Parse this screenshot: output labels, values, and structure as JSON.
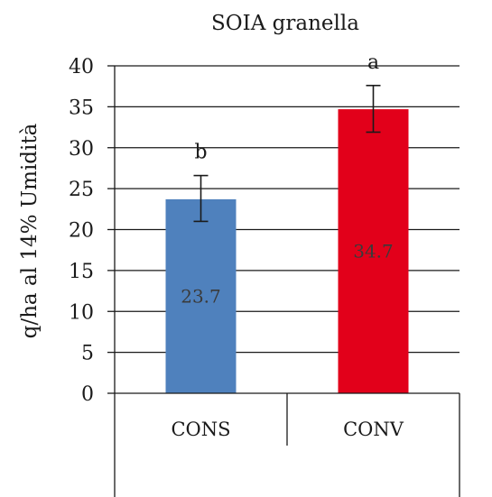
{
  "chart_data": {
    "type": "bar",
    "title": "SOIA granella",
    "ylabel": "q/ha al 14% Umidità",
    "xlabel": "",
    "ylim": [
      0,
      40
    ],
    "yticks": [
      0,
      5,
      10,
      15,
      20,
      25,
      30,
      35,
      40
    ],
    "categories": [
      "CONS",
      "CONV"
    ],
    "values": [
      23.7,
      34.7
    ],
    "data_labels": [
      "23.7",
      "34.7"
    ],
    "error_low": [
      21.0,
      31.9
    ],
    "error_high": [
      26.6,
      37.6
    ],
    "significance": [
      "b",
      "a"
    ],
    "colors": [
      "#4f81bd",
      "#e2001a"
    ],
    "gridlines": true,
    "legend": "none"
  }
}
